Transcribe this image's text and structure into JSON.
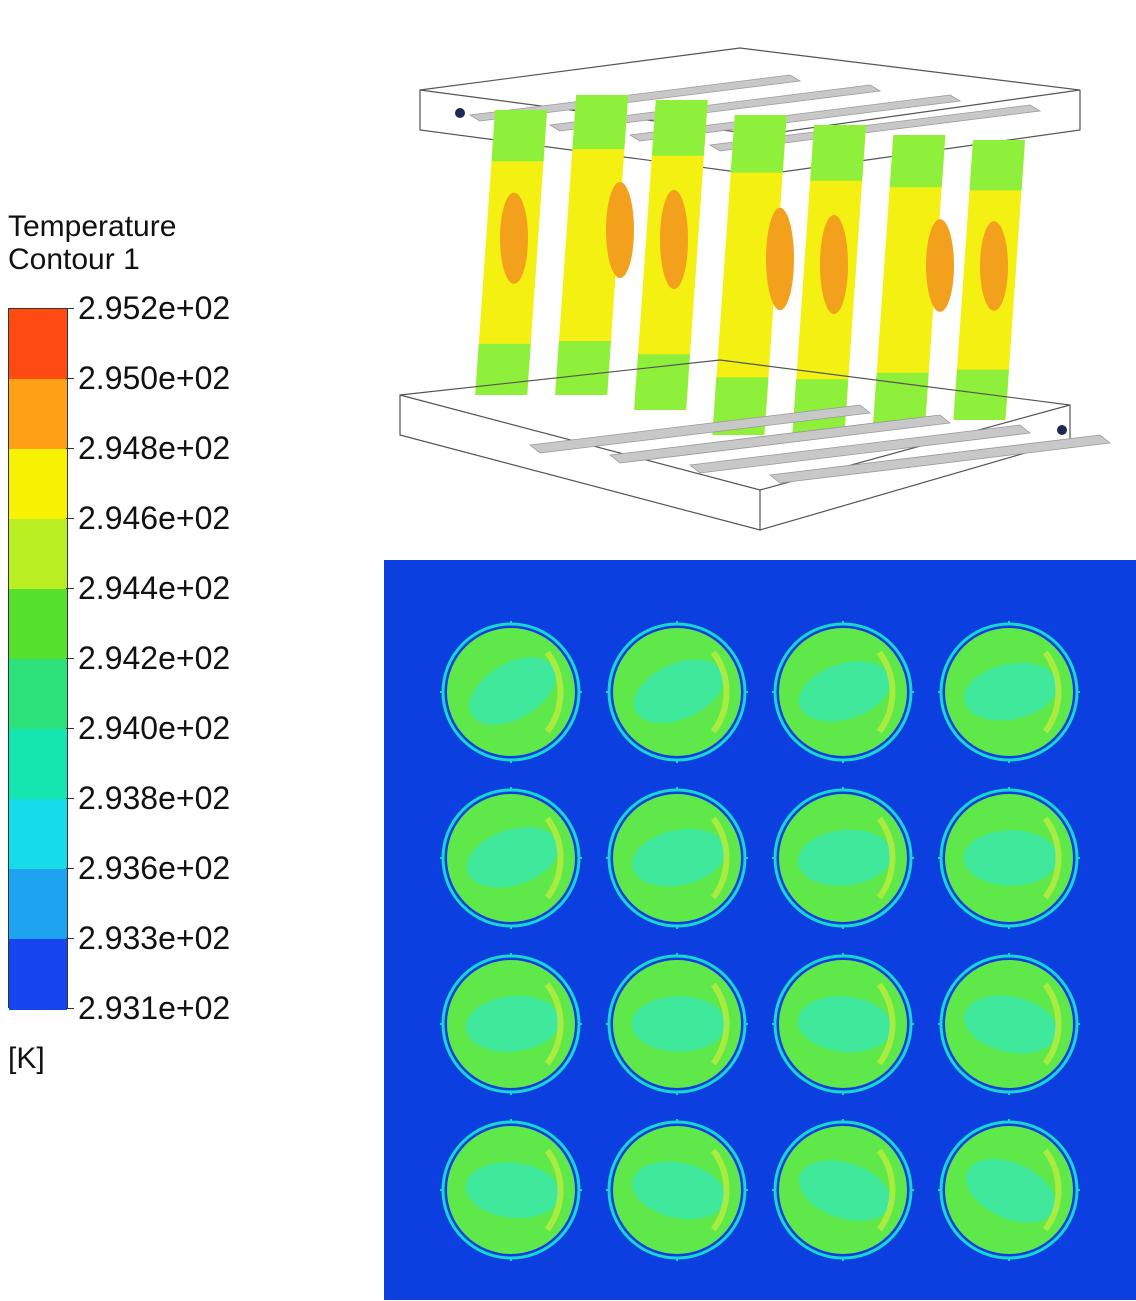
{
  "legend": {
    "title_line1": "Temperature",
    "title_line2": "Contour 1",
    "unit": "[K]",
    "levels": [
      "2.952e+02",
      "2.950e+02",
      "2.948e+02",
      "2.946e+02",
      "2.944e+02",
      "2.942e+02",
      "2.940e+02",
      "2.938e+02",
      "2.936e+02",
      "2.933e+02",
      "2.931e+02"
    ],
    "band_colors": [
      "#ff4a12",
      "#ffa116",
      "#f6f200",
      "#b9ef22",
      "#55e12d",
      "#2ce17a",
      "#14e6b0",
      "#16dbe8",
      "#1ea3f0",
      "#1646f0"
    ]
  },
  "colors": {
    "background": "#0c3fe0",
    "cylinder_outer": "#5fe84a",
    "cylinder_inner": "#3fe89a",
    "cylinder_ring": "#19d7d0",
    "fin_yellow": "#f4f012",
    "fin_orange": "#f3a11d",
    "fin_green": "#8ef03a",
    "plate_gray": "#c8c8c8"
  }
}
